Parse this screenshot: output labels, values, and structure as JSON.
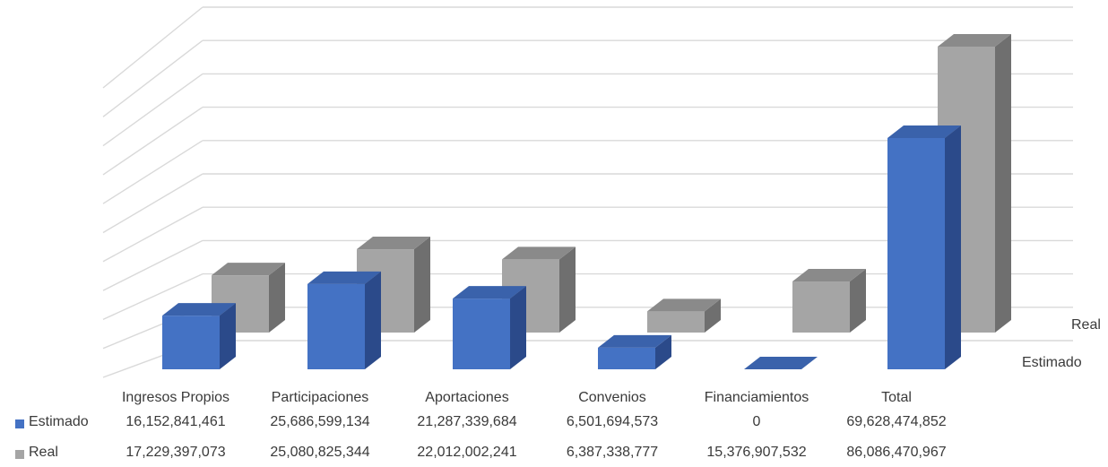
{
  "chart_data": {
    "type": "bar",
    "categories": [
      "Ingresos Propios",
      "Participaciones",
      "Aportaciones",
      "Convenios",
      "Financiamientos",
      "Total"
    ],
    "series": [
      {
        "name": "Estimado",
        "values": [
          16152841461,
          25686599134,
          21287339684,
          6501694573,
          0,
          69628474852
        ],
        "color": "#4472C4"
      },
      {
        "name": "Real",
        "values": [
          17229397073,
          25080825344,
          22012002241,
          6387338777,
          15376907532,
          86086470967
        ],
        "color": "#A5A5A5"
      }
    ],
    "table": {
      "rows": [
        {
          "label": "Estimado",
          "cells": [
            "16,152,841,461",
            "25,686,599,134",
            "21,287,339,684",
            "6,501,694,573",
            "0",
            "69,628,474,852"
          ]
        },
        {
          "label": "Real",
          "cells": [
            "17,229,397,073",
            "25,080,825,344",
            "22,012,002,241",
            "6,387,338,777",
            "15,376,907,532",
            "86,086,470,967"
          ]
        }
      ]
    },
    "depth_labels": [
      "Real",
      "Estimado"
    ],
    "ylim": [
      0,
      100000000000
    ],
    "grid": true,
    "style": "3d-column"
  }
}
